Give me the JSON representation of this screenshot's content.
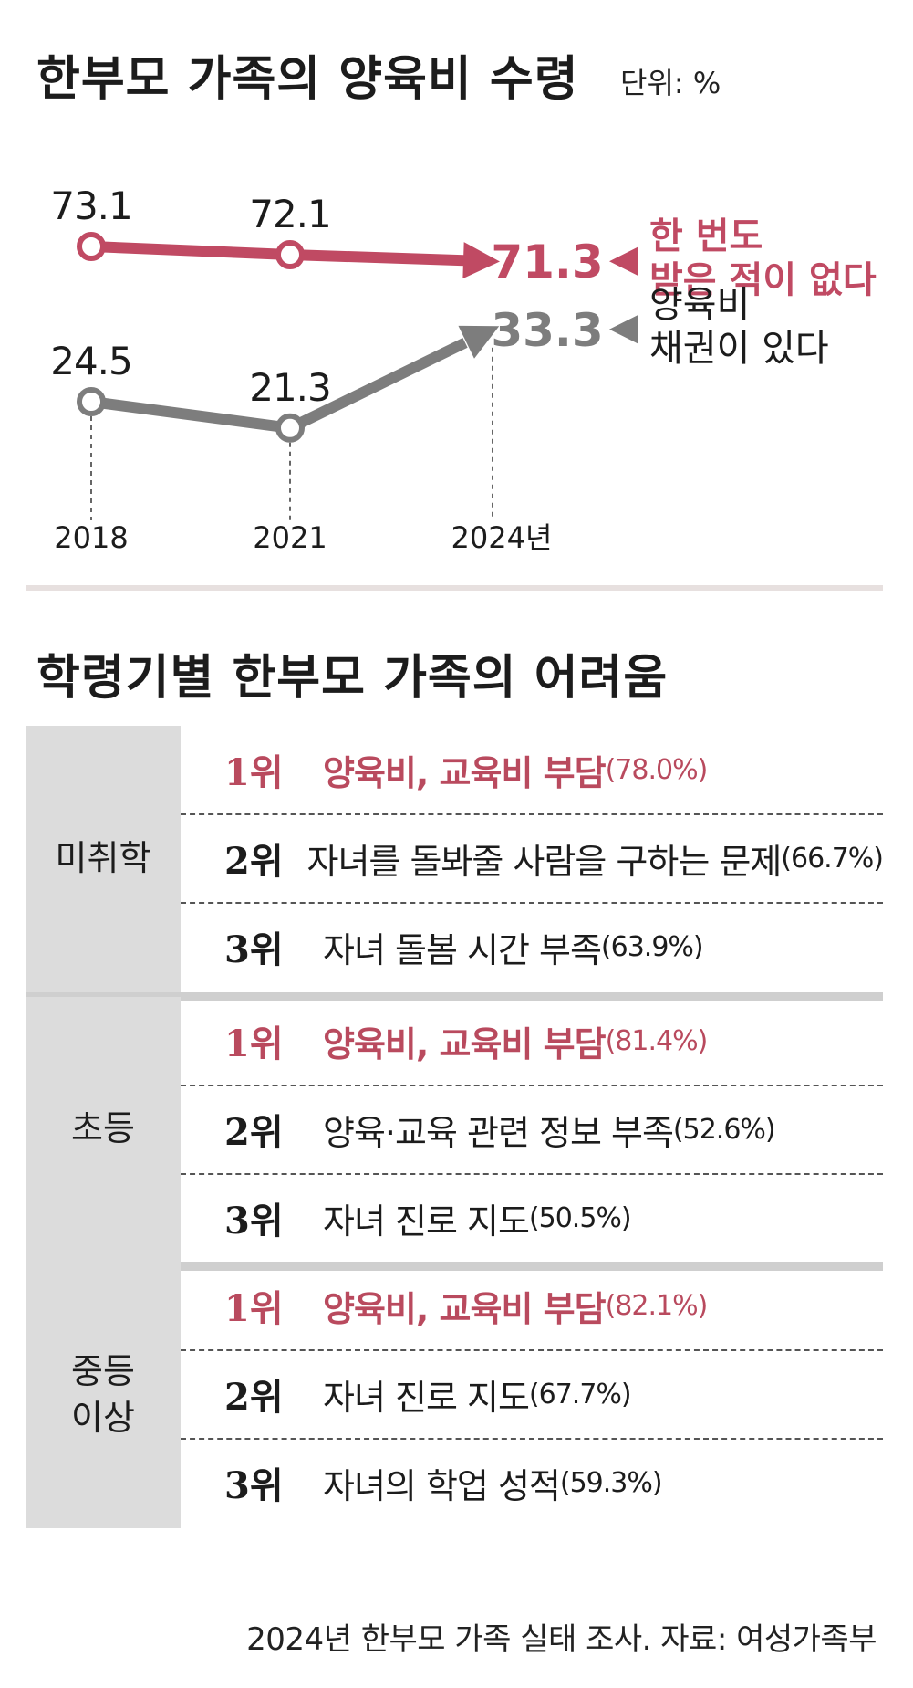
{
  "title": "한부모 가족의 양육비 수령",
  "unit": "단위: %",
  "chart_data": {
    "type": "line",
    "x": [
      "2018",
      "2021",
      "2024년"
    ],
    "series": [
      {
        "name": "한 번도 받은 적이 없다",
        "name_lines": [
          "한 번도",
          "받은 적이 없다"
        ],
        "values": [
          73.1,
          72.1,
          71.3
        ],
        "labels": [
          "73.1",
          "72.1",
          "71.3"
        ],
        "color": "#c04a63"
      },
      {
        "name": "양육비 채권이 있다",
        "name_lines": [
          "양육비",
          "채권이 있다"
        ],
        "values": [
          24.5,
          21.3,
          33.3
        ],
        "labels": [
          "24.5",
          "21.3",
          "33.3"
        ],
        "color": "#7d7d7d"
      }
    ]
  },
  "section2_title": "학령기별 한부모 가족의 어려움",
  "groups": [
    {
      "label": "미취학",
      "items": [
        {
          "rank": "1위",
          "text": "양육비, 교육비 부담",
          "pct": "(78.0%)"
        },
        {
          "rank": "2위",
          "text": "자녀를 돌봐줄 사람을 구하는 문제",
          "pct": "(66.7%)"
        },
        {
          "rank": "3위",
          "text": "자녀 돌봄 시간 부족",
          "pct": "(63.9%)"
        }
      ]
    },
    {
      "label": "초등",
      "items": [
        {
          "rank": "1위",
          "text": "양육비, 교육비 부담",
          "pct": "(81.4%)"
        },
        {
          "rank": "2위",
          "text": "양육·교육 관련 정보 부족",
          "pct": "(52.6%)"
        },
        {
          "rank": "3위",
          "text": "자녀 진로 지도",
          "pct": "(50.5%)"
        }
      ]
    },
    {
      "label": "중등\n이상",
      "items": [
        {
          "rank": "1위",
          "text": "양육비, 교육비 부담",
          "pct": "(82.1%)"
        },
        {
          "rank": "2위",
          "text": "자녀 진로 지도",
          "pct": "(67.7%)"
        },
        {
          "rank": "3위",
          "text": "자녀의 학업 성적",
          "pct": "(59.3%)"
        }
      ]
    }
  ],
  "source": "2024년 한부모 가족 실태 조사. 자료: 여성가족부"
}
